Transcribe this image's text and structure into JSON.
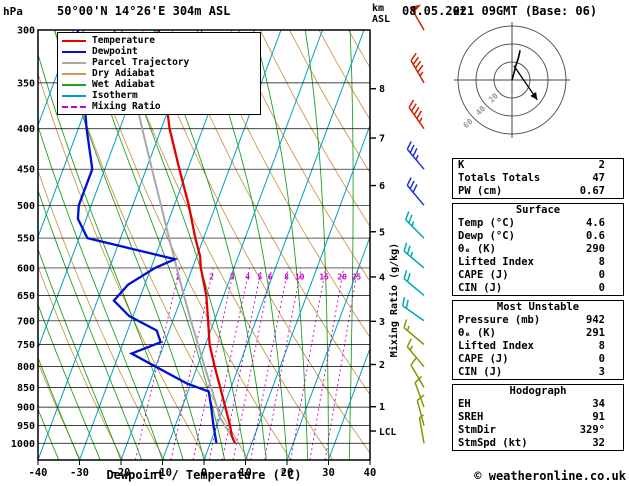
{
  "header": {
    "pressure_unit": "hPa",
    "station": "50°00'N 14°26'E 304m ASL",
    "datetime": "08.05.2021 09GMT (Base: 06)"
  },
  "footer": {
    "copyright": "© weatheronline.co.uk"
  },
  "axes": {
    "xlabel": "Dewpoint / Temperature (°C)",
    "pressure_ticks": [
      300,
      350,
      400,
      450,
      500,
      550,
      600,
      650,
      700,
      750,
      800,
      850,
      900,
      950,
      1000
    ],
    "temp_ticks": [
      -40,
      -30,
      -20,
      -10,
      0,
      10,
      20,
      30,
      40
    ],
    "km_ticks": [
      8,
      7,
      6,
      5,
      4,
      3,
      2,
      1
    ],
    "km_unit_top": "km",
    "km_unit_bottom": "ASL",
    "mixing_ratio_label": "Mixing Ratio (g/kg)",
    "mixing_ratio_values": [
      1,
      2,
      3,
      4,
      5,
      6,
      8,
      10,
      15,
      20,
      25
    ],
    "lcl_label": "LCL"
  },
  "legend": [
    {
      "label": "Temperature",
      "key": "temperature",
      "dash": false
    },
    {
      "label": "Dewpoint",
      "key": "dewpoint",
      "dash": false
    },
    {
      "label": "Parcel Trajectory",
      "key": "parcel",
      "dash": false
    },
    {
      "label": "Dry Adiabat",
      "key": "dry_adiabat",
      "dash": false
    },
    {
      "label": "Wet Adiabat",
      "key": "wet_adiabat",
      "dash": false
    },
    {
      "label": "Isotherm",
      "key": "isotherm",
      "dash": false
    },
    {
      "label": "Mixing Ratio",
      "key": "mixing_ratio",
      "dash": true
    }
  ],
  "colors": {
    "temperature": "#e00000",
    "dewpoint": "#0010d0",
    "parcel": "#a8a8a8",
    "dry_adiabat": "#cc9a4e",
    "wet_adiabat": "#22a022",
    "isotherm": "#00a0c0",
    "mixing_ratio": "#c800c8",
    "frame": "#000000",
    "grid": "#000000",
    "barb_colors": [
      {
        "max_p": 400,
        "color": "#cc2200"
      },
      {
        "max_p": 500,
        "color": "#2233cc"
      },
      {
        "max_p": 700,
        "color": "#00aaaa"
      },
      {
        "max_p": 1050,
        "color": "#7a9a00"
      }
    ]
  },
  "chart_data": {
    "type": "line",
    "subtype": "skew-t log-p sounding",
    "p_range": [
      300,
      1050
    ],
    "t_range": [
      -40,
      40
    ],
    "temperature": [
      [
        1000,
        6.0
      ],
      [
        980,
        4.6
      ],
      [
        950,
        3.2
      ],
      [
        925,
        1.8
      ],
      [
        900,
        0.4
      ],
      [
        850,
        -2.6
      ],
      [
        800,
        -5.8
      ],
      [
        750,
        -9.0
      ],
      [
        700,
        -11.5
      ],
      [
        650,
        -14.2
      ],
      [
        600,
        -18.0
      ],
      [
        580,
        -19.2
      ],
      [
        550,
        -22.0
      ],
      [
        500,
        -26.5
      ],
      [
        450,
        -32.0
      ],
      [
        400,
        -38.0
      ],
      [
        350,
        -43.5
      ],
      [
        300,
        -49.5
      ]
    ],
    "dewpoint": [
      [
        1000,
        1.5
      ],
      [
        980,
        0.6
      ],
      [
        950,
        -0.8
      ],
      [
        900,
        -3.0
      ],
      [
        860,
        -5.0
      ],
      [
        840,
        -11
      ],
      [
        800,
        -20
      ],
      [
        770,
        -27
      ],
      [
        745,
        -21
      ],
      [
        720,
        -23
      ],
      [
        690,
        -31
      ],
      [
        660,
        -36
      ],
      [
        630,
        -34
      ],
      [
        600,
        -29
      ],
      [
        585,
        -25
      ],
      [
        565,
        -38
      ],
      [
        550,
        -48
      ],
      [
        520,
        -52
      ],
      [
        500,
        -53
      ],
      [
        450,
        -53
      ],
      [
        400,
        -58
      ],
      [
        350,
        -63
      ],
      [
        300,
        -69
      ]
    ],
    "parcel": [
      [
        1000,
        6.0
      ],
      [
        980,
        4.6
      ],
      [
        930,
        0.2
      ],
      [
        900,
        -1.6
      ],
      [
        850,
        -4.8
      ],
      [
        800,
        -8.2
      ],
      [
        750,
        -11.8
      ],
      [
        700,
        -15.6
      ],
      [
        650,
        -19.6
      ],
      [
        600,
        -23.8
      ],
      [
        550,
        -28.3
      ],
      [
        500,
        -33.2
      ],
      [
        450,
        -38.6
      ],
      [
        400,
        -44.6
      ],
      [
        350,
        -51.2
      ],
      [
        300,
        -58.4
      ]
    ],
    "winds": [
      {
        "p": 300,
        "spd": 50,
        "dir": 330
      },
      {
        "p": 350,
        "spd": 45,
        "dir": 330
      },
      {
        "p": 400,
        "spd": 45,
        "dir": 325
      },
      {
        "p": 450,
        "spd": 35,
        "dir": 320
      },
      {
        "p": 500,
        "spd": 30,
        "dir": 320
      },
      {
        "p": 550,
        "spd": 25,
        "dir": 315
      },
      {
        "p": 600,
        "spd": 25,
        "dir": 310
      },
      {
        "p": 650,
        "spd": 20,
        "dir": 310
      },
      {
        "p": 700,
        "spd": 20,
        "dir": 305
      },
      {
        "p": 750,
        "spd": 15,
        "dir": 310
      },
      {
        "p": 800,
        "spd": 15,
        "dir": 320
      },
      {
        "p": 850,
        "spd": 10,
        "dir": 330
      },
      {
        "p": 900,
        "spd": 10,
        "dir": 340
      },
      {
        "p": 950,
        "spd": 10,
        "dir": 345
      },
      {
        "p": 1000,
        "spd": 5,
        "dir": 350
      }
    ],
    "hodograph": {
      "unit": "kt",
      "rings": [
        20,
        40,
        60
      ],
      "trace": [
        [
          0,
          0
        ],
        [
          2,
          7
        ],
        [
          4,
          15
        ],
        [
          7,
          24
        ],
        [
          9,
          33
        ]
      ],
      "storm_arrow": {
        "from": [
          2,
          16
        ],
        "to": [
          28,
          -22
        ]
      }
    }
  },
  "table": {
    "sections": [
      {
        "title": null,
        "rows": [
          [
            "K",
            "2"
          ],
          [
            "Totals Totals",
            "47"
          ],
          [
            "PW (cm)",
            "0.67"
          ]
        ]
      },
      {
        "title": "Surface",
        "rows": [
          [
            "Temp (°C)",
            "4.6"
          ],
          [
            "Dewp (°C)",
            "0.6"
          ],
          [
            "θₑ (K)",
            "290"
          ],
          [
            "Lifted Index",
            "8"
          ],
          [
            "CAPE (J)",
            "0"
          ],
          [
            "CIN (J)",
            "0"
          ]
        ]
      },
      {
        "title": "Most Unstable",
        "rows": [
          [
            "Pressure (mb)",
            "942"
          ],
          [
            "θₑ (K)",
            "291"
          ],
          [
            "Lifted Index",
            "8"
          ],
          [
            "CAPE (J)",
            "0"
          ],
          [
            "CIN (J)",
            "3"
          ]
        ]
      },
      {
        "title": "Hodograph",
        "rows": [
          [
            "EH",
            "34"
          ],
          [
            "SREH",
            "91"
          ],
          [
            "StmDir",
            "329°"
          ],
          [
            "StmSpd (kt)",
            "32"
          ]
        ]
      }
    ]
  }
}
